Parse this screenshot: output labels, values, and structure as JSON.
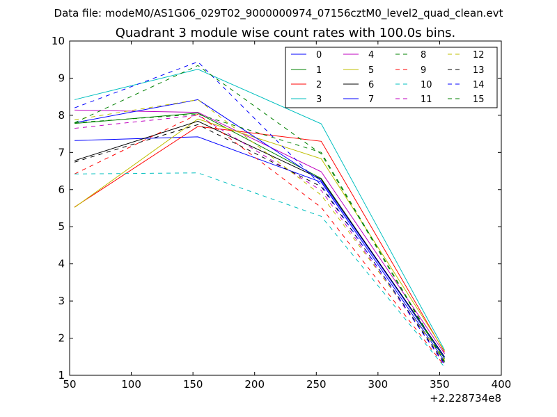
{
  "chart_data": {
    "type": "line",
    "suptitle": "Data file: modeM0/AS1G06_029T02_9000000974_07156cztM0_level2_quad_clean.evt",
    "title": "Quadrant 3 module wise count rates with 100.0s bins.",
    "xlabel": "",
    "ylabel": "",
    "x_offset_label": "+2.228734e8",
    "xlim": [
      50,
      400
    ],
    "ylim": [
      1,
      10
    ],
    "x_ticks": [
      50,
      100,
      150,
      200,
      250,
      300,
      350,
      400
    ],
    "y_ticks": [
      1,
      2,
      3,
      4,
      5,
      6,
      7,
      8,
      9,
      10
    ],
    "grid": false,
    "legend_position": "top-right",
    "x": [
      54,
      154,
      254,
      354
    ],
    "series": [
      {
        "name": "0",
        "color": "#0000ff",
        "style": "solid",
        "values": [
          7.32,
          7.42,
          6.2,
          1.38
        ]
      },
      {
        "name": "1",
        "color": "#008000",
        "style": "solid",
        "values": [
          7.78,
          8.06,
          6.3,
          1.45
        ]
      },
      {
        "name": "2",
        "color": "#ff0000",
        "style": "solid",
        "values": [
          5.53,
          7.7,
          7.3,
          1.62
        ]
      },
      {
        "name": "3",
        "color": "#00bfbf",
        "style": "solid",
        "values": [
          8.42,
          9.24,
          7.77,
          1.68
        ]
      },
      {
        "name": "4",
        "color": "#bf00bf",
        "style": "solid",
        "values": [
          8.14,
          8.08,
          6.48,
          1.58
        ]
      },
      {
        "name": "5",
        "color": "#bfbf00",
        "style": "solid",
        "values": [
          5.52,
          7.9,
          6.83,
          1.65
        ]
      },
      {
        "name": "6",
        "color": "#000000",
        "style": "solid",
        "values": [
          6.78,
          7.84,
          6.28,
          1.5
        ]
      },
      {
        "name": "7",
        "color": "#0000ff",
        "style": "solid",
        "values": [
          7.8,
          8.42,
          6.24,
          1.48
        ]
      },
      {
        "name": "8",
        "color": "#008000",
        "style": "dashed",
        "values": [
          7.8,
          8.03,
          7.0,
          1.38
        ]
      },
      {
        "name": "9",
        "color": "#ff0000",
        "style": "dashed",
        "values": [
          6.42,
          8.03,
          5.52,
          1.25
        ]
      },
      {
        "name": "10",
        "color": "#00bfbf",
        "style": "dashed",
        "values": [
          6.42,
          6.45,
          5.28,
          1.22
        ]
      },
      {
        "name": "11",
        "color": "#bf00bf",
        "style": "dashed",
        "values": [
          7.65,
          8.0,
          5.98,
          1.32
        ]
      },
      {
        "name": "12",
        "color": "#bfbf00",
        "style": "dashed",
        "values": [
          7.88,
          8.42,
          5.85,
          1.42
        ]
      },
      {
        "name": "13",
        "color": "#000000",
        "style": "dashed",
        "values": [
          6.74,
          7.75,
          6.08,
          1.33
        ]
      },
      {
        "name": "14",
        "color": "#0000ff",
        "style": "dashed",
        "values": [
          8.2,
          9.44,
          6.12,
          1.28
        ]
      },
      {
        "name": "15",
        "color": "#008000",
        "style": "dashed",
        "values": [
          7.8,
          9.34,
          6.96,
          1.35
        ]
      }
    ]
  }
}
